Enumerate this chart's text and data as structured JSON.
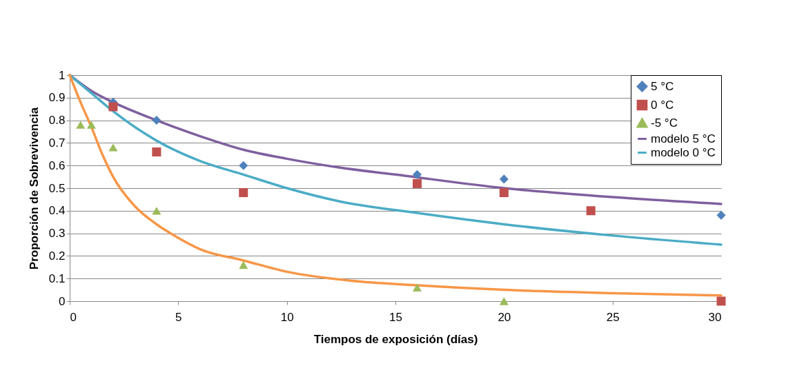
{
  "chart_data": {
    "type": "scatter",
    "xlabel": "Tiempos de exposición (días)",
    "ylabel": "Proporción de Sobrevivencia",
    "xlim": [
      0,
      30
    ],
    "xticks": [
      0,
      5,
      10,
      15,
      20,
      25,
      30
    ],
    "ylim": [
      0,
      1
    ],
    "yticks": [
      0,
      0.1,
      0.2,
      0.3,
      0.4,
      0.5,
      0.6,
      0.7,
      0.8,
      0.9,
      1
    ],
    "grid": "y",
    "legend": "top right",
    "series": [
      {
        "name": "5 °C",
        "type": "scatter",
        "marker": "diamond",
        "color": "#4f81bd",
        "x": [
          2,
          4,
          8,
          16,
          20,
          30
        ],
        "values": [
          0.88,
          0.8,
          0.6,
          0.56,
          0.54,
          0.38
        ]
      },
      {
        "name": "0 °C",
        "type": "scatter",
        "marker": "square",
        "color": "#c0504d",
        "x": [
          2,
          4,
          8,
          16,
          20,
          24,
          30
        ],
        "values": [
          0.86,
          0.66,
          0.48,
          0.52,
          0.48,
          0.4,
          0
        ]
      },
      {
        "name": "-5 °C",
        "type": "scatter",
        "marker": "triangle",
        "color": "#9bbb59",
        "x": [
          0.5,
          1,
          2,
          4,
          8,
          16,
          20
        ],
        "values": [
          0.78,
          0.78,
          0.68,
          0.4,
          0.16,
          0.06,
          0
        ]
      },
      {
        "name": "modelo 5 °C",
        "type": "line",
        "marker": "none",
        "color": "#7f5f9f",
        "x": [
          0,
          1,
          2,
          4,
          6,
          8,
          10,
          12.5,
          15,
          20,
          25,
          30
        ],
        "values": [
          1,
          0.93,
          0.88,
          0.8,
          0.73,
          0.67,
          0.63,
          0.59,
          0.56,
          0.5,
          0.46,
          0.43
        ]
      },
      {
        "name": "modelo 0 °C",
        "type": "line",
        "marker": "none",
        "color": "#4bacc6",
        "x": [
          0,
          1,
          2,
          4,
          6,
          8,
          10,
          12.5,
          16,
          20,
          25,
          30
        ],
        "values": [
          1,
          0.92,
          0.84,
          0.71,
          0.62,
          0.56,
          0.5,
          0.44,
          0.39,
          0.34,
          0.29,
          0.25
        ]
      },
      {
        "type": "line",
        "marker": "none",
        "color": "#f79646",
        "x": [
          0,
          0.5,
          1,
          1.5,
          2,
          3,
          4,
          5,
          6,
          8,
          10,
          13,
          16,
          20,
          25,
          30
        ],
        "values": [
          1,
          0.88,
          0.77,
          0.65,
          0.55,
          0.42,
          0.34,
          0.28,
          0.23,
          0.18,
          0.13,
          0.09,
          0.07,
          0.05,
          0.035,
          0.025
        ]
      }
    ]
  }
}
